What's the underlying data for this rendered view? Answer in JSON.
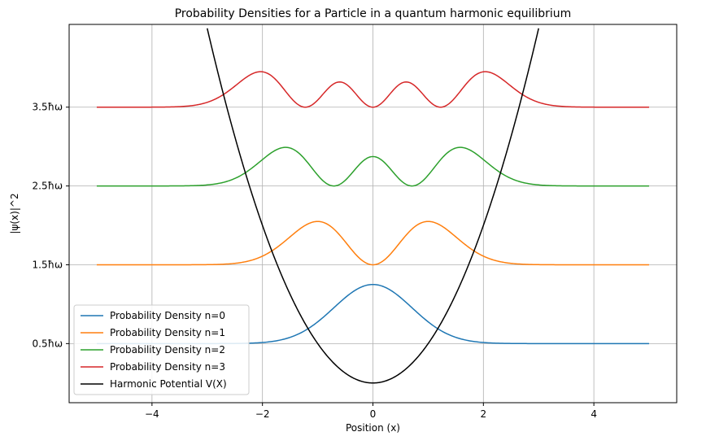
{
  "chart_data": {
    "type": "line",
    "title": "Probability Densities for a Particle in a quantum harmonic equilibrium",
    "xlabel": "Position (x)",
    "ylabel": "|ψ(x)|^2",
    "xlim": [
      -5.5,
      5.5
    ],
    "ylim": [
      -0.25,
      4.55
    ],
    "x_ticks": [
      -4,
      -2,
      0,
      2,
      4
    ],
    "x_tick_labels": [
      "−4",
      "−2",
      "0",
      "2",
      "4"
    ],
    "y_ticks": [
      0.5,
      1.5,
      2.5,
      3.5
    ],
    "y_tick_labels": [
      "0.5ħω",
      "1.5ħω",
      "2.5ħω",
      "3.5ħω"
    ],
    "grid": true,
    "legend_position": "lower-left",
    "series": [
      {
        "name": "Probability Density n=0",
        "color": "#1f77b4",
        "n": 0,
        "offset": 0.5,
        "x_range": [
          -5,
          5
        ],
        "peak_points": [
          {
            "x": 0,
            "y": 1.25
          }
        ]
      },
      {
        "name": "Probability Density n=1",
        "color": "#ff7f0e",
        "n": 1,
        "offset": 1.5,
        "x_range": [
          -5,
          5
        ],
        "peak_points": [
          {
            "x": -1,
            "y": 2.05
          },
          {
            "x": 1,
            "y": 2.05
          }
        ]
      },
      {
        "name": "Probability Density n=2",
        "color": "#2ca02c",
        "n": 2,
        "offset": 2.5,
        "x_range": [
          -5,
          5
        ],
        "peak_points": [
          {
            "x": -1.58,
            "y": 2.99
          },
          {
            "x": 0,
            "y": 2.88
          },
          {
            "x": 1.58,
            "y": 2.99
          }
        ]
      },
      {
        "name": "Probability Density n=3",
        "color": "#d62728",
        "n": 3,
        "offset": 3.5,
        "x_range": [
          -5,
          5
        ],
        "peak_points": [
          {
            "x": -2.03,
            "y": 3.95
          },
          {
            "x": -0.6,
            "y": 3.82
          },
          {
            "x": 0.6,
            "y": 3.82
          },
          {
            "x": 2.03,
            "y": 3.95
          }
        ]
      },
      {
        "name": "Harmonic Potential V(X)",
        "color": "#000000",
        "x_range": [
          -3,
          3
        ],
        "formula": "0.5*x^2",
        "points": [
          {
            "x": -3,
            "y": 4.5
          },
          {
            "x": 0,
            "y": 0
          },
          {
            "x": 3,
            "y": 4.5
          }
        ]
      }
    ]
  }
}
